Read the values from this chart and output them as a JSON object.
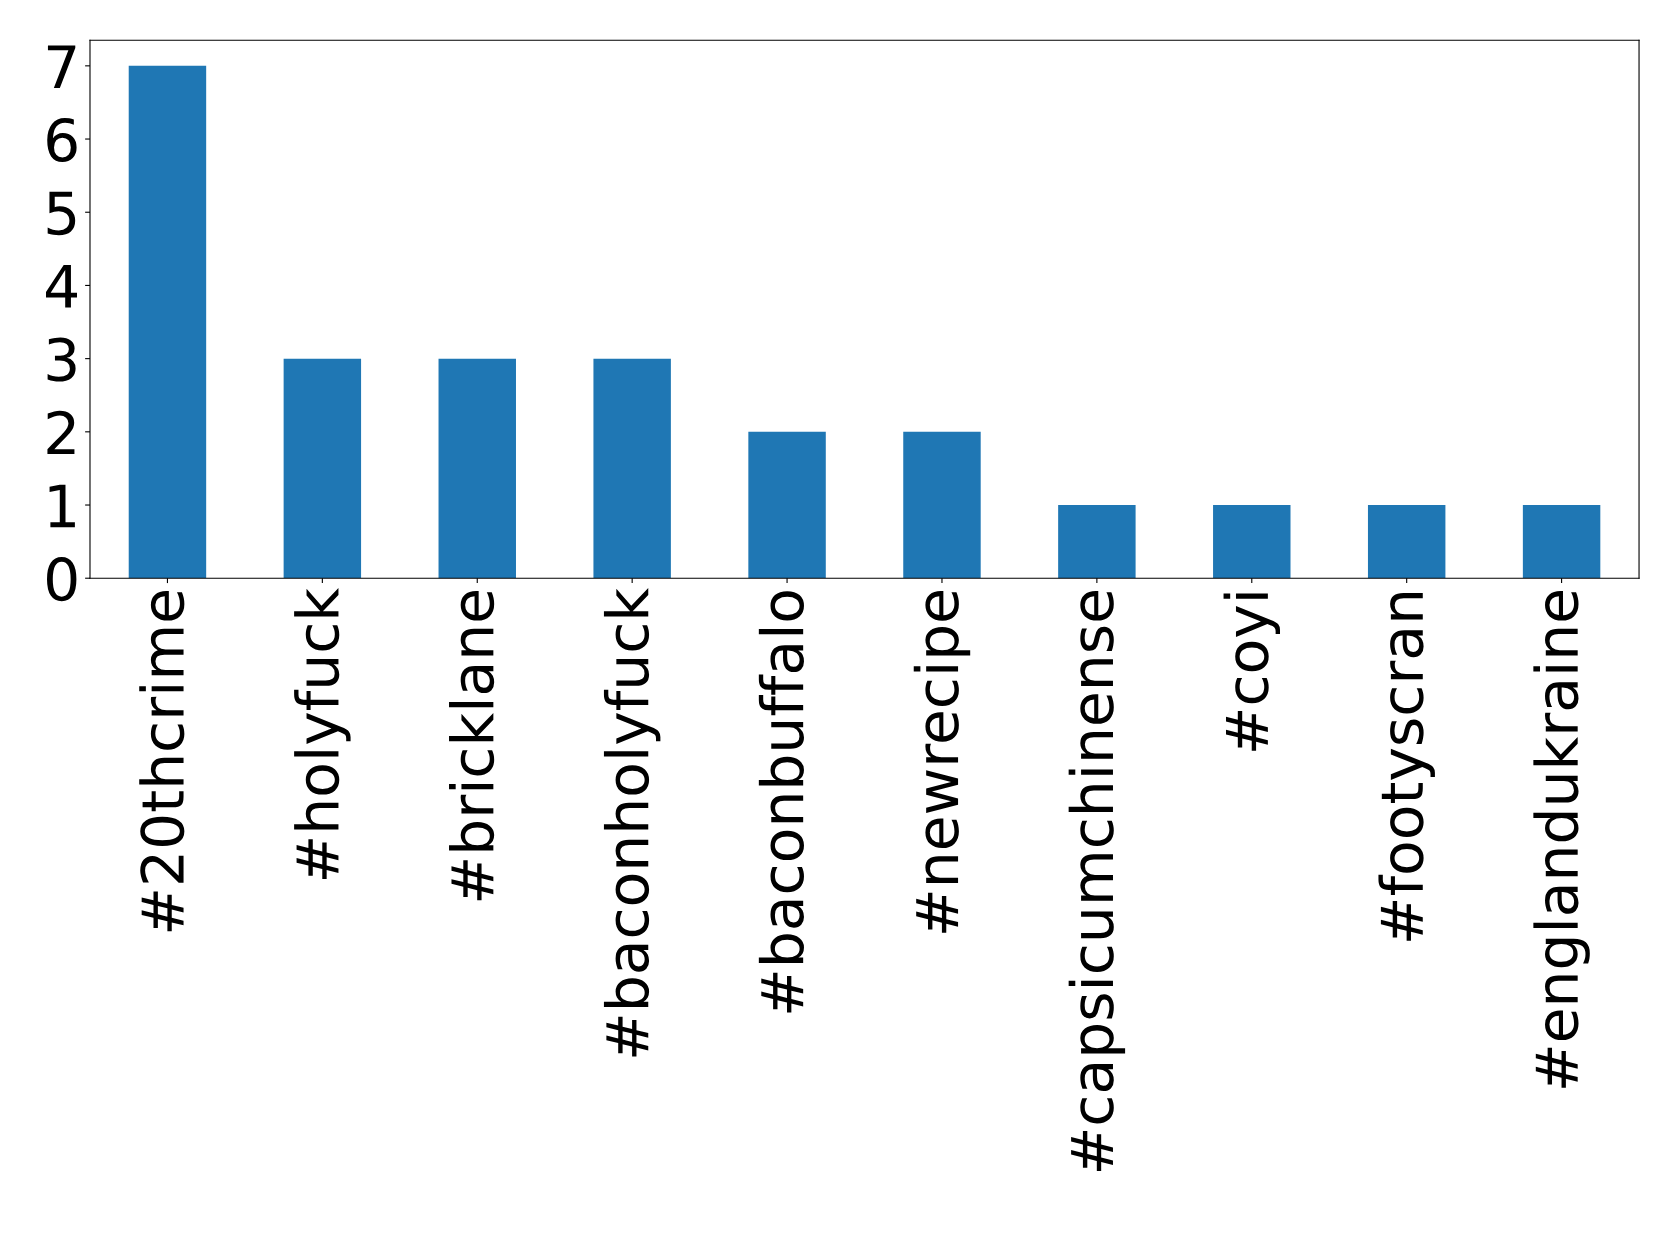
{
  "chart_data": {
    "type": "bar",
    "categories": [
      "#20thcrime",
      "#holyfuck",
      "#bricklane",
      "#baconholyfuck",
      "#baconbuffalo",
      "#newrecipe",
      "#capsicumchinense",
      "#coyi",
      "#footyscran",
      "#englandukraine"
    ],
    "values": [
      7,
      3,
      3,
      3,
      2,
      2,
      1,
      1,
      1,
      1
    ],
    "color": "#1f77b4",
    "ylim": [
      0,
      7.35
    ],
    "yticks": [
      0,
      1,
      2,
      3,
      4,
      5,
      6,
      7
    ],
    "grid": false,
    "legend": false
  }
}
